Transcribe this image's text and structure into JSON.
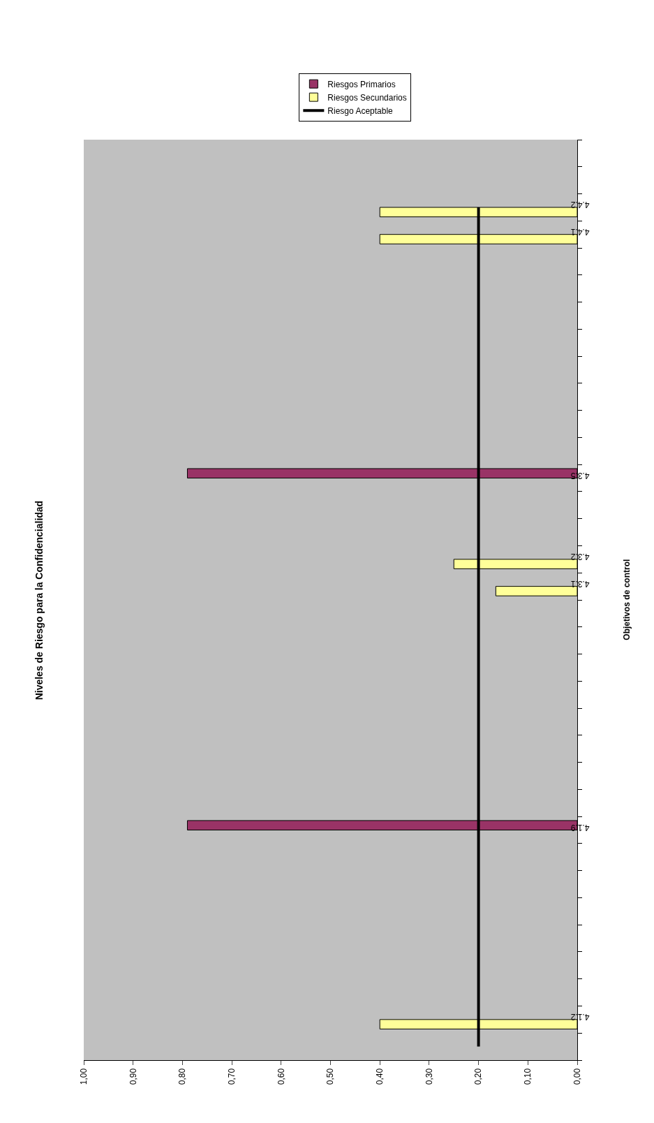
{
  "chart_data": {
    "type": "bar",
    "orientation": "horizontal",
    "title": "Niveles de Riesgo para la Confidencialidad",
    "ylabel": "Objetivos de control",
    "categories": [
      null,
      null,
      "4.4.2",
      "4.4.1",
      null,
      null,
      null,
      null,
      null,
      null,
      null,
      null,
      "4.3.5",
      null,
      null,
      "4.3.2",
      "4.3.1",
      null,
      null,
      null,
      null,
      null,
      null,
      null,
      null,
      "4.1.9",
      null,
      null,
      null,
      null,
      null,
      null,
      "4.1.2",
      null
    ],
    "series": [
      {
        "name": "Riesgos Primarios",
        "color": "#993366",
        "values": [
          null,
          null,
          null,
          null,
          null,
          null,
          null,
          null,
          null,
          null,
          null,
          null,
          0.79,
          null,
          null,
          null,
          null,
          null,
          null,
          null,
          null,
          null,
          null,
          null,
          null,
          0.79,
          null,
          null,
          null,
          null,
          null,
          null,
          null,
          null
        ]
      },
      {
        "name": "Riesgos Secundarios",
        "color": "#ffff99",
        "values": [
          null,
          null,
          0.4,
          0.4,
          null,
          null,
          null,
          null,
          null,
          null,
          null,
          null,
          null,
          null,
          null,
          0.25,
          0.165,
          null,
          null,
          null,
          null,
          null,
          null,
          null,
          null,
          null,
          null,
          null,
          null,
          null,
          null,
          null,
          0.4,
          null
        ]
      },
      {
        "name": "Riesgo Aceptable",
        "type": "line",
        "color": "#000000",
        "values": [
          null,
          null,
          0.2,
          0.2,
          0.2,
          0.2,
          0.2,
          0.2,
          0.2,
          0.2,
          0.2,
          0.2,
          0.2,
          0.2,
          0.2,
          0.2,
          0.2,
          0.2,
          0.2,
          0.2,
          0.2,
          0.2,
          0.2,
          0.2,
          0.2,
          0.2,
          0.2,
          0.2,
          0.2,
          0.2,
          0.2,
          0.2,
          0.2,
          0.2
        ]
      }
    ],
    "xlim": [
      1.0,
      0.0
    ],
    "xticks": [
      {
        "value": 1.0,
        "label": "1,00"
      },
      {
        "value": 0.9,
        "label": "0,90"
      },
      {
        "value": 0.8,
        "label": "0,80"
      },
      {
        "value": 0.7,
        "label": "0,70"
      },
      {
        "value": 0.6,
        "label": "0,60"
      },
      {
        "value": 0.5,
        "label": "0,50"
      },
      {
        "value": 0.4,
        "label": "0,40"
      },
      {
        "value": 0.3,
        "label": "0,30"
      },
      {
        "value": 0.2,
        "label": "0,20"
      },
      {
        "value": 0.1,
        "label": "0,10"
      },
      {
        "value": 0.0,
        "label": "0,00"
      }
    ],
    "grid": false,
    "legend": "top",
    "marker": "none",
    "line_style": "solid"
  }
}
